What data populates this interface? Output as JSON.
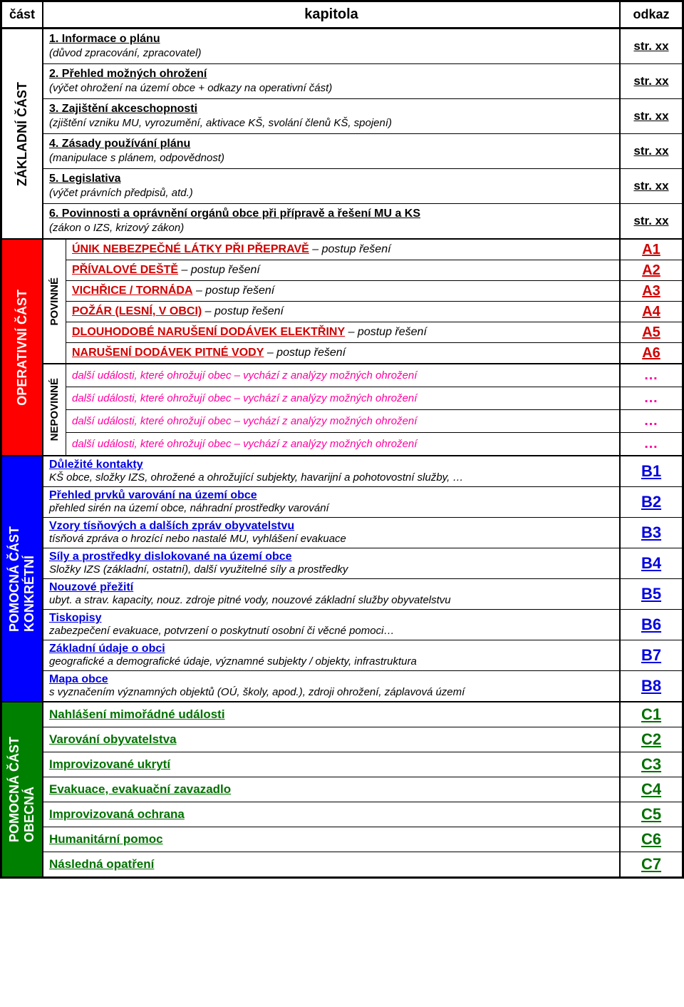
{
  "header": {
    "cast": "část",
    "kapitola": "kapitola",
    "odkaz": "odkaz"
  },
  "sections": {
    "zakladni": {
      "label": "ZÁKLADNÍ ČÁST",
      "rows": [
        {
          "title": "1. Informace o plánu",
          "desc": "(důvod zpracování, zpracovatel)",
          "ref": "str. xx"
        },
        {
          "title": "2. Přehled možných ohrožení",
          "desc": "(výčet ohrožení na území obce + odkazy na operativní část)",
          "ref": "str. xx"
        },
        {
          "title": "3. Zajištění akceschopnosti",
          "desc": "(zjištění vzniku MU, vyrozumění, aktivace KŠ, svolání členů KŠ, spojení)",
          "ref": "str. xx"
        },
        {
          "title": "4. Zásady používání plánu",
          "desc": "(manipulace s plánem, odpovědnost)",
          "ref": "str. xx"
        },
        {
          "title": "5. Legislativa",
          "desc": "(výčet právních předpisů, atd.)",
          "ref": "str. xx"
        },
        {
          "title": "6. Povinnosti a oprávnění orgánů obce při přípravě a řešení MU a KS",
          "desc": "(zákon o IZS, krizový zákon)",
          "ref": "str. xx"
        }
      ]
    },
    "operativni": {
      "label": "OPERATIVNÍ ČÁST",
      "povinne": {
        "label": "POVINNÉ",
        "rows": [
          {
            "title": "ÚNIK NEBEZPEČNÉ LÁTKY PŘI PŘEPRAVĚ",
            "suffix": " – postup řešení",
            "ref": "A1"
          },
          {
            "title": "PŘÍVALOVÉ DEŠTĚ",
            "suffix": " – postup řešení",
            "ref": "A2"
          },
          {
            "title": "VICHŘICE / TORNÁDA",
            "suffix": " – postup řešení",
            "ref": "A3"
          },
          {
            "title": "POŽÁR (LESNÍ, V OBCI)",
            "suffix": " – postup řešení",
            "ref": "A4"
          },
          {
            "title": "DLOUHODOBÉ NARUŠENÍ DODÁVEK ELEKTŘINY",
            "suffix": " – postup řešení",
            "ref": "A5"
          },
          {
            "title": "NARUŠENÍ DODÁVEK PITNÉ VODY",
            "suffix": " – postup řešení",
            "ref": "A6"
          }
        ]
      },
      "nepovinne": {
        "label": "NEPOVINNÉ",
        "rows": [
          {
            "text": "další události, které ohrožují obec – vychází z analýzy možných ohrožení",
            "ref": "…"
          },
          {
            "text": "další události, které ohrožují obec – vychází z analýzy možných ohrožení",
            "ref": "…"
          },
          {
            "text": "další události, které ohrožují obec – vychází z analýzy možných ohrožení",
            "ref": "…"
          },
          {
            "text": "další události, které ohrožují obec – vychází z analýzy možných ohrožení",
            "ref": "…"
          }
        ]
      }
    },
    "pomocna_konkretni": {
      "label_line1": "POMOCNÁ ČÁST",
      "label_line2": "KONKRÉTNÍ",
      "rows": [
        {
          "title": "Důležité kontakty",
          "desc": "KŠ obce, složky IZS, ohrožené a ohrožující subjekty, havarijní a pohotovostní služby, …",
          "ref": "B1"
        },
        {
          "title": "Přehled prvků varování na území obce",
          "desc": "přehled sirén na území obce, náhradní prostředky varování",
          "ref": "B2"
        },
        {
          "title": "Vzory tísňových a dalších zpráv obyvatelstvu",
          "desc": "tísňová zpráva o hrozící nebo nastalé MU, vyhlášení evakuace",
          "ref": "B3"
        },
        {
          "title": "Síly a prostředky dislokované na území obce",
          "desc": "Složky IZS (základní, ostatní), další využitelné síly a prostředky",
          "ref": "B4"
        },
        {
          "title": "Nouzové přežití",
          "desc": "ubyt. a strav. kapacity, nouz. zdroje pitné vody, nouzové základní služby obyvatelstvu",
          "ref": "B5"
        },
        {
          "title": "Tiskopisy",
          "desc": "zabezpečení evakuace, potvrzení o poskytnutí osobní či věcné pomoci…",
          "ref": "B6"
        },
        {
          "title": "Základní údaje o obci",
          "desc": "geografické a demografické údaje, významné subjekty / objekty,  infrastruktura",
          "ref": "B7"
        },
        {
          "title": "Mapa obce",
          "desc": "s vyznačením významných objektů (OÚ, školy, apod.), zdroji ohrožení, záplavová území",
          "ref": "B8"
        }
      ]
    },
    "pomocna_obecna": {
      "label_line1": "POMOCNÁ ČÁST",
      "label_line2": "OBECNÁ",
      "rows": [
        {
          "title": "Nahlášení mimořádné události",
          "ref": "C1"
        },
        {
          "title": "Varování obyvatelstva",
          "ref": "C2"
        },
        {
          "title": "Improvizované ukrytí",
          "ref": "C3"
        },
        {
          "title": "Evakuace, evakuační zavazadlo",
          "ref": "C4"
        },
        {
          "title": "Improvizovaná ochrana",
          "ref": "C5"
        },
        {
          "title": "Humanitární pomoc",
          "ref": "C6"
        },
        {
          "title": "Následná opatření",
          "ref": "C7"
        }
      ]
    }
  },
  "colors": {
    "red": "#ff0000",
    "a_text": "#d00000",
    "pink": "#ff00a0",
    "blue_bg": "#0000ff",
    "blue_text": "#0000e0",
    "green_bg": "#008000",
    "green_text": "#007000"
  }
}
